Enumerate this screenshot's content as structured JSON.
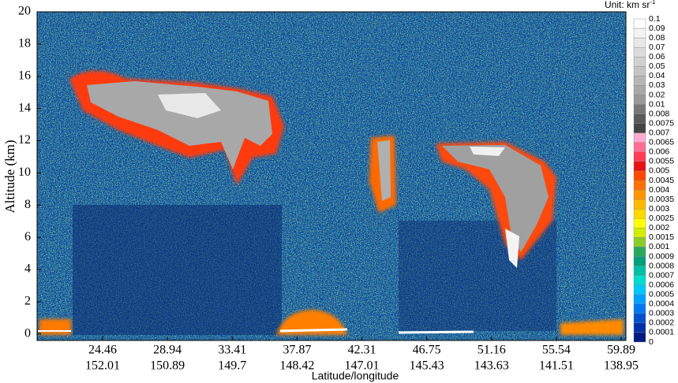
{
  "chart_data": {
    "type": "curtain",
    "ylabel": "Altitude (km)",
    "xlabel": "Latitude/longitude",
    "ylim": [
      -0.4,
      20
    ],
    "yticks": [
      0,
      2,
      4,
      6,
      8,
      10,
      12,
      14,
      16,
      18,
      20
    ],
    "x_latitude": [
      24.46,
      28.94,
      33.41,
      37.87,
      42.31,
      46.75,
      51.16,
      55.54,
      59.89
    ],
    "x_longitude": [
      152.01,
      150.89,
      149.7,
      148.42,
      147.01,
      145.43,
      143.63,
      141.51,
      138.95
    ],
    "colorbar": {
      "unit": "Unit: km sr",
      "unit_exponent": "-1",
      "labels": [
        0.1,
        0.09,
        0.08,
        0.07,
        0.06,
        0.05,
        0.04,
        0.03,
        0.02,
        0.01,
        0.008,
        0.0075,
        0.007,
        0.0065,
        0.006,
        0.0055,
        0.005,
        0.0045,
        0.004,
        0.0035,
        0.003,
        0.0025,
        0.002,
        0.0015,
        0.001,
        0.0009,
        0.0008,
        0.0007,
        0.0006,
        0.0005,
        0.0004,
        0.0003,
        0.0002,
        0.0001,
        0
      ],
      "colors": [
        "#ffffff",
        "#f4f4f4",
        "#e8e8e8",
        "#dcdcdc",
        "#d0d0d0",
        "#c4c4c4",
        "#b6b6b6",
        "#a8a8a8",
        "#999999",
        "#777777",
        "#5a5a5a",
        "#444444",
        "#ffaacc",
        "#ff6f94",
        "#ff3a55",
        "#e81010",
        "#ff4a00",
        "#ff7000",
        "#ff9500",
        "#ffb800",
        "#ffd800",
        "#ffff00",
        "#d4ee00",
        "#8ccc2a",
        "#2aa85a",
        "#00a07a",
        "#00c0a8",
        "#00ddd0",
        "#00c8ff",
        "#00a0ff",
        "#0078f0",
        "#0050d0",
        "#0030a8",
        "#001c80"
      ]
    }
  }
}
